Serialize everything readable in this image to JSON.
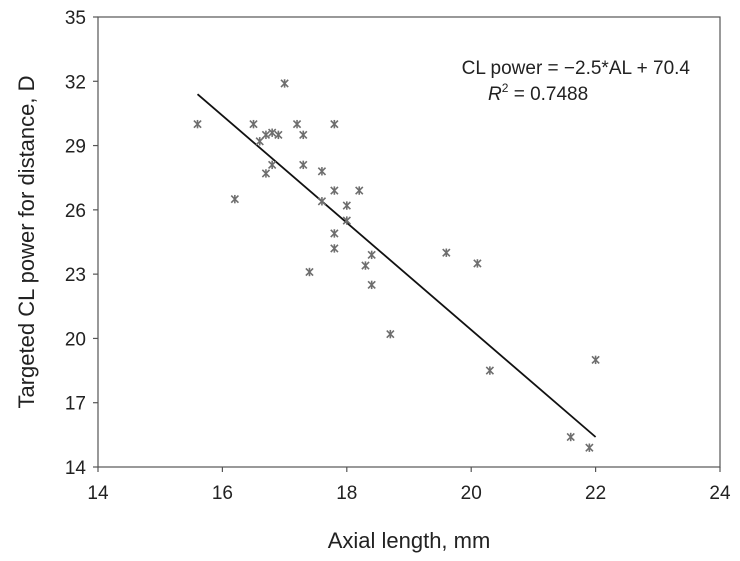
{
  "chart_data": {
    "type": "scatter",
    "xlabel": "Axial length, mm",
    "ylabel": "Targeted CL power for distance, D",
    "xlim": [
      14,
      24
    ],
    "ylim": [
      14,
      35
    ],
    "x_ticks": [
      "14",
      "16",
      "18",
      "20",
      "22",
      "24"
    ],
    "y_ticks": [
      "14",
      "17",
      "20",
      "23",
      "26",
      "29",
      "32",
      "35"
    ],
    "grid": false,
    "series": [
      {
        "points": [
          [
            15.6,
            30.0
          ],
          [
            16.2,
            26.5
          ],
          [
            16.5,
            30.0
          ],
          [
            16.6,
            29.2
          ],
          [
            16.7,
            29.5
          ],
          [
            16.7,
            27.7
          ],
          [
            16.8,
            29.6
          ],
          [
            16.8,
            28.1
          ],
          [
            16.9,
            29.5
          ],
          [
            17.0,
            31.9
          ],
          [
            17.2,
            30.0
          ],
          [
            17.3,
            29.5
          ],
          [
            17.3,
            28.1
          ],
          [
            17.4,
            23.1
          ],
          [
            17.6,
            27.8
          ],
          [
            17.6,
            26.4
          ],
          [
            17.8,
            30.0
          ],
          [
            17.8,
            26.9
          ],
          [
            17.8,
            24.9
          ],
          [
            17.8,
            24.2
          ],
          [
            18.0,
            26.2
          ],
          [
            18.0,
            25.5
          ],
          [
            18.2,
            26.9
          ],
          [
            18.3,
            23.4
          ],
          [
            18.4,
            23.9
          ],
          [
            18.4,
            22.5
          ],
          [
            18.7,
            20.2
          ],
          [
            19.6,
            24.0
          ],
          [
            20.1,
            23.5
          ],
          [
            20.3,
            18.5
          ],
          [
            21.6,
            15.4
          ],
          [
            21.9,
            14.9
          ],
          [
            22.0,
            19.0
          ]
        ]
      }
    ],
    "trendline": {
      "x_range": [
        15.6,
        22.0
      ],
      "equation": "CL power = −2.5*AL + 70.4",
      "r2_prefix": "R",
      "r2_sup": "2",
      "r2_value": " = 0.7488"
    }
  }
}
